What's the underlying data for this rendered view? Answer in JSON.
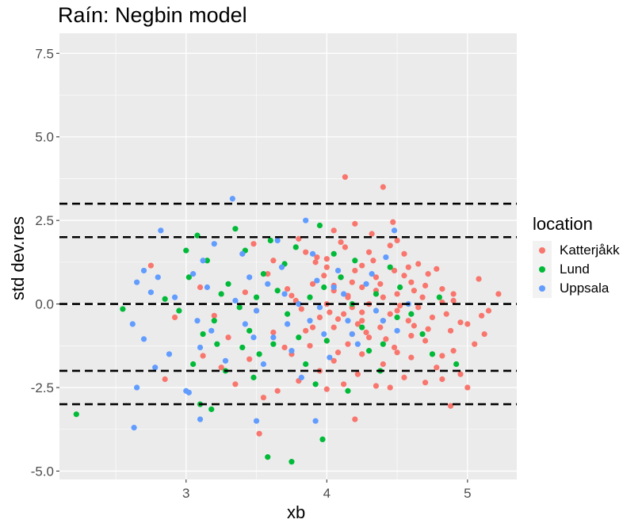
{
  "chart_data": {
    "type": "scatter",
    "title": "Raín: Negbin model",
    "xlabel": "xb",
    "ylabel": "std dev.res",
    "xlim": [
      2.1,
      5.35
    ],
    "ylim": [
      -5.25,
      8.1
    ],
    "x_ticks": [
      3,
      4,
      5
    ],
    "y_ticks": [
      -5.0,
      -2.5,
      0.0,
      2.5,
      5.0,
      7.5
    ],
    "x_tick_labels": [
      "3",
      "4",
      "5"
    ],
    "y_tick_labels": [
      "-5.0",
      "-2.5",
      "0.0",
      "2.5",
      "5.0",
      "7.5"
    ],
    "hlines": [
      -3,
      -2,
      0,
      2,
      3
    ],
    "hline_style": "dashed black",
    "grid": true,
    "legend": {
      "title": "location",
      "position": "right"
    },
    "series": [
      {
        "name": "Katterjåkk",
        "color": "#F8766D",
        "points": [
          [
            4.13,
            3.8
          ],
          [
            4.4,
            3.5
          ],
          [
            4.47,
            2.45
          ],
          [
            4.2,
            2.4
          ],
          [
            4.05,
            2.2
          ],
          [
            4.32,
            2.1
          ],
          [
            4.5,
            1.9
          ],
          [
            4.13,
            1.7
          ],
          [
            3.85,
            1.55
          ],
          [
            4.55,
            1.5
          ],
          [
            3.93,
            1.4
          ],
          [
            4.33,
            1.3
          ],
          [
            4.65,
            1.2
          ],
          [
            2.75,
            1.15
          ],
          [
            4.0,
            1.1
          ],
          [
            4.2,
            1.0
          ],
          [
            4.48,
            1.0
          ],
          [
            4.72,
            0.9
          ],
          [
            3.58,
            0.9
          ],
          [
            4.1,
            0.8
          ],
          [
            4.35,
            0.8
          ],
          [
            5.08,
            0.75
          ],
          [
            4.6,
            0.65
          ],
          [
            3.9,
            0.6
          ],
          [
            4.25,
            0.5
          ],
          [
            4.82,
            0.45
          ],
          [
            4.05,
            0.4
          ],
          [
            4.5,
            0.3
          ],
          [
            5.22,
            0.3
          ],
          [
            4.15,
            0.2
          ],
          [
            4.4,
            0.2
          ],
          [
            4.9,
            0.1
          ],
          [
            3.78,
            0.1
          ],
          [
            4.0,
            0.0
          ],
          [
            4.3,
            0.0
          ],
          [
            4.65,
            -0.1
          ],
          [
            5.15,
            -0.2
          ],
          [
            4.12,
            -0.3
          ],
          [
            4.45,
            -0.3
          ],
          [
            3.95,
            -0.4
          ],
          [
            4.75,
            -0.4
          ],
          [
            4.25,
            -0.5
          ],
          [
            4.58,
            -0.5
          ],
          [
            5.0,
            -0.6
          ],
          [
            4.05,
            -0.7
          ],
          [
            4.38,
            -0.7
          ],
          [
            4.88,
            -0.8
          ],
          [
            3.85,
            -0.8
          ],
          [
            4.18,
            -0.9
          ],
          [
            4.6,
            -0.95
          ],
          [
            5.12,
            -0.9
          ],
          [
            4.3,
            -1.0
          ],
          [
            4.0,
            -1.1
          ],
          [
            4.7,
            -1.1
          ],
          [
            4.15,
            -1.2
          ],
          [
            4.48,
            -1.3
          ],
          [
            3.7,
            -1.3
          ],
          [
            4.9,
            -1.4
          ],
          [
            4.25,
            -1.5
          ],
          [
            4.6,
            -1.6
          ],
          [
            4.05,
            -1.7
          ],
          [
            4.4,
            -1.8
          ],
          [
            4.78,
            -1.9
          ],
          [
            3.95,
            -2.0
          ],
          [
            4.22,
            -2.1
          ],
          [
            4.55,
            -2.2
          ],
          [
            4.82,
            -2.25
          ],
          [
            3.8,
            -2.3
          ],
          [
            4.12,
            -2.4
          ],
          [
            4.45,
            -2.5
          ],
          [
            5.0,
            -2.5
          ],
          [
            2.85,
            -2.25
          ],
          [
            3.55,
            -2.8
          ],
          [
            4.88,
            -3.05
          ],
          [
            4.2,
            -3.45
          ],
          [
            3.52,
            -3.88
          ],
          [
            3.35,
            -2.4
          ],
          [
            3.65,
            -2.6
          ],
          [
            4.0,
            -2.55
          ],
          [
            4.35,
            -2.45
          ],
          [
            4.7,
            -2.35
          ],
          [
            4.95,
            -2.1
          ],
          [
            3.25,
            -1.9
          ],
          [
            3.45,
            -1.65
          ],
          [
            3.75,
            -1.5
          ],
          [
            4.08,
            -1.45
          ],
          [
            4.5,
            -1.45
          ],
          [
            4.82,
            -1.55
          ],
          [
            5.05,
            -1.2
          ],
          [
            3.3,
            -1.0
          ],
          [
            3.62,
            -0.85
          ],
          [
            3.9,
            -0.7
          ],
          [
            4.22,
            -0.6
          ],
          [
            4.62,
            -0.65
          ],
          [
            4.95,
            -0.55
          ],
          [
            3.2,
            -0.35
          ],
          [
            3.5,
            -0.2
          ],
          [
            3.82,
            -0.15
          ],
          [
            4.18,
            -0.1
          ],
          [
            4.52,
            -0.05
          ],
          [
            4.82,
            0.05
          ],
          [
            3.42,
            0.35
          ],
          [
            3.72,
            0.45
          ],
          [
            4.05,
            0.55
          ],
          [
            4.38,
            0.6
          ],
          [
            4.7,
            0.55
          ],
          [
            3.62,
            1.3
          ],
          [
            3.92,
            1.25
          ],
          [
            4.25,
            1.15
          ],
          [
            4.58,
            1.1
          ],
          [
            3.48,
            1.8
          ],
          [
            3.8,
            1.95
          ],
          [
            4.1,
            1.85
          ],
          [
            4.45,
            1.75
          ],
          [
            2.92,
            -0.4
          ],
          [
            3.12,
            -1.55
          ],
          [
            3.1,
            0.5
          ],
          [
            4.3,
            1.55
          ],
          [
            4.02,
            -0.25
          ],
          [
            4.68,
            0.2
          ],
          [
            4.42,
            -1.05
          ],
          [
            4.85,
            -0.3
          ],
          [
            3.98,
            0.85
          ],
          [
            4.55,
            0.85
          ],
          [
            4.28,
            -0.85
          ],
          [
            4.72,
            -0.75
          ],
          [
            4.15,
            0.25
          ],
          [
            3.88,
            -1.25
          ],
          [
            4.62,
            0.4
          ],
          [
            4.35,
            0.4
          ],
          [
            4.08,
            -0.45
          ],
          [
            4.4,
            -0.5
          ],
          [
            4.18,
            0.65
          ],
          [
            3.75,
            0.25
          ],
          [
            4.5,
            -0.2
          ],
          [
            4.25,
            -0.25
          ],
          [
            4.9,
            0.3
          ],
          [
            5.1,
            -0.35
          ],
          [
            4.0,
            1.35
          ],
          [
            4.78,
            1.05
          ]
        ]
      },
      {
        "name": "Lund",
        "color": "#00BA38",
        "points": [
          [
            2.22,
            -3.3
          ],
          [
            2.55,
            -0.15
          ],
          [
            2.85,
            0.15
          ],
          [
            3.0,
            1.6
          ],
          [
            3.08,
            2.05
          ],
          [
            3.15,
            1.3
          ],
          [
            3.02,
            0.8
          ],
          [
            2.95,
            -0.2
          ],
          [
            3.12,
            -0.9
          ],
          [
            3.1,
            -3.0
          ],
          [
            3.18,
            -3.15
          ],
          [
            3.05,
            -1.8
          ],
          [
            3.22,
            -1.2
          ],
          [
            3.28,
            -2.0
          ],
          [
            3.35,
            2.25
          ],
          [
            3.42,
            1.6
          ],
          [
            3.3,
            0.6
          ],
          [
            3.38,
            -0.1
          ],
          [
            3.45,
            -0.8
          ],
          [
            3.52,
            -1.5
          ],
          [
            3.48,
            -2.2
          ],
          [
            3.58,
            -4.58
          ],
          [
            3.75,
            -4.72
          ],
          [
            3.97,
            -4.05
          ],
          [
            3.6,
            1.9
          ],
          [
            3.7,
            1.2
          ],
          [
            3.65,
            0.4
          ],
          [
            3.72,
            -0.3
          ],
          [
            3.8,
            -1.0
          ],
          [
            3.85,
            -1.8
          ],
          [
            3.92,
            -2.4
          ],
          [
            4.15,
            -2.6
          ],
          [
            3.95,
            2.35
          ],
          [
            4.05,
            1.5
          ],
          [
            4.1,
            0.8
          ],
          [
            4.18,
            0.0
          ],
          [
            4.25,
            -0.7
          ],
          [
            4.3,
            -1.4
          ],
          [
            4.38,
            -2.0
          ],
          [
            4.45,
            1.1
          ],
          [
            4.52,
            0.5
          ],
          [
            4.6,
            -0.3
          ],
          [
            4.68,
            -0.9
          ],
          [
            4.75,
            -1.5
          ],
          [
            4.92,
            -1.8
          ],
          [
            4.8,
            0.2
          ],
          [
            3.25,
            0.3
          ],
          [
            3.4,
            -1.3
          ],
          [
            3.55,
            0.9
          ],
          [
            3.78,
            1.7
          ],
          [
            3.88,
            0.2
          ],
          [
            4.0,
            -1.1
          ],
          [
            4.2,
            1.3
          ],
          [
            4.35,
            0.3
          ],
          [
            4.5,
            -0.4
          ],
          [
            3.2,
            -0.5
          ],
          [
            3.62,
            -1.2
          ],
          [
            3.98,
            0.5
          ],
          [
            4.4,
            -1.2
          ],
          [
            3.5,
            0.2
          ]
        ]
      },
      {
        "name": "Uppsala",
        "color": "#619CFF",
        "points": [
          [
            2.63,
            -3.7
          ],
          [
            2.65,
            -2.5
          ],
          [
            2.7,
            -1.05
          ],
          [
            2.62,
            -0.6
          ],
          [
            2.75,
            0.35
          ],
          [
            2.7,
            1.0
          ],
          [
            2.8,
            0.8
          ],
          [
            2.65,
            0.65
          ],
          [
            2.82,
            2.2
          ],
          [
            3.0,
            -2.6
          ],
          [
            3.02,
            -2.65
          ],
          [
            3.1,
            -1.3
          ],
          [
            3.08,
            -0.5
          ],
          [
            3.15,
            0.5
          ],
          [
            3.12,
            1.3
          ],
          [
            3.2,
            1.8
          ],
          [
            3.1,
            -3.45
          ],
          [
            3.33,
            3.15
          ],
          [
            3.4,
            1.5
          ],
          [
            3.45,
            0.8
          ],
          [
            3.5,
            -0.2
          ],
          [
            3.48,
            -1.0
          ],
          [
            3.55,
            -1.8
          ],
          [
            3.5,
            -3.5
          ],
          [
            3.65,
            1.9
          ],
          [
            3.68,
            1.1
          ],
          [
            3.7,
            0.3
          ],
          [
            3.72,
            -0.6
          ],
          [
            3.75,
            -1.4
          ],
          [
            3.82,
            -2.2
          ],
          [
            3.85,
            2.5
          ],
          [
            3.9,
            1.5
          ],
          [
            3.93,
            0.7
          ],
          [
            3.95,
            -0.1
          ],
          [
            3.98,
            -0.9
          ],
          [
            4.02,
            -1.6
          ],
          [
            3.92,
            -3.5
          ],
          [
            4.08,
            1.0
          ],
          [
            4.12,
            0.3
          ],
          [
            4.15,
            -0.5
          ],
          [
            4.22,
            -1.2
          ],
          [
            4.28,
            0.6
          ],
          [
            4.35,
            -0.2
          ],
          [
            4.42,
            1.4
          ],
          [
            4.48,
            2.2
          ],
          [
            4.5,
            -0.8
          ],
          [
            4.58,
            0.0
          ],
          [
            2.88,
            -1.5
          ],
          [
            2.92,
            0.2
          ],
          [
            3.05,
            0.9
          ],
          [
            3.18,
            -0.8
          ],
          [
            3.28,
            -1.7
          ],
          [
            3.35,
            0.1
          ],
          [
            3.42,
            -0.6
          ],
          [
            3.58,
            0.6
          ],
          [
            3.62,
            -1.0
          ],
          [
            3.8,
            0.0
          ],
          [
            3.88,
            -0.5
          ],
          [
            4.05,
            0.5
          ],
          [
            4.18,
            -0.9
          ],
          [
            4.32,
            0.9
          ],
          [
            4.4,
            -0.5
          ],
          [
            2.78,
            -1.9
          ]
        ]
      }
    ]
  }
}
